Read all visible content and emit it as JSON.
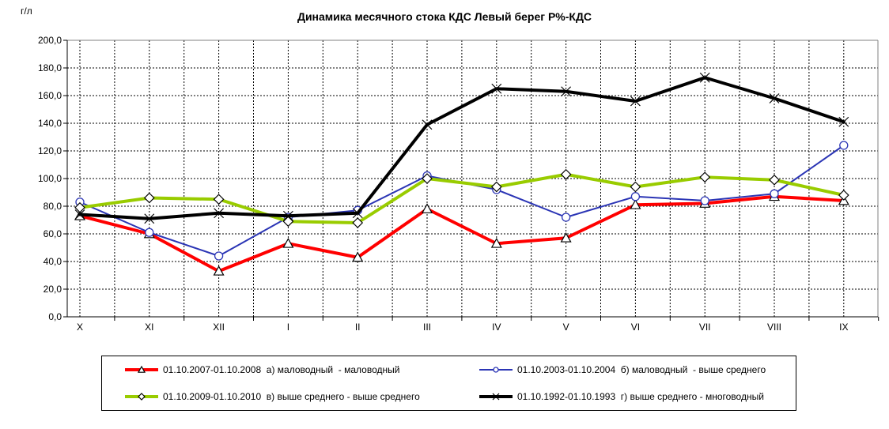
{
  "title": "Динамика месячного стока КДС Левый берег Р%-КДС",
  "y_axis": {
    "unit_label": "г/л",
    "min": 0,
    "max": 200,
    "step": 20,
    "tick_labels": [
      "0,0",
      "20,0",
      "40,0",
      "60,0",
      "80,0",
      "100,0",
      "120,0",
      "140,0",
      "160,0",
      "180,0",
      "200,0"
    ]
  },
  "x_axis": {
    "tick_labels": [
      "X",
      "XI",
      "XII",
      "I",
      "II",
      "III",
      "IV",
      "V",
      "VI",
      "VII",
      "VIII",
      "IX"
    ]
  },
  "chart_data": {
    "type": "line",
    "title": "Динамика месячного стока КДС Левый берег Р%-КДС",
    "xlabel": "",
    "ylabel": "г/л",
    "ylim": [
      0,
      200
    ],
    "ytick_step": 20,
    "grid": "dashed-both-directions",
    "legend_position": "bottom",
    "categories": [
      "X",
      "XI",
      "XII",
      "I",
      "II",
      "III",
      "IV",
      "V",
      "VI",
      "VII",
      "VIII",
      "IX"
    ],
    "series": [
      {
        "name": "01.10.2007-01.10.2008  а) маловодный  - маловодный",
        "color": "#FF0000",
        "marker": "triangle",
        "line_width": 4,
        "values": [
          73,
          60,
          33,
          53,
          43,
          78,
          53,
          57,
          81,
          82,
          87,
          84
        ]
      },
      {
        "name": "01.10.2003-01.10.2004  б) маловодный  - выше среднего",
        "color": "#2B35B5",
        "marker": "circle",
        "line_width": 2,
        "values": [
          83,
          61,
          44,
          72,
          77,
          102,
          92,
          72,
          87,
          84,
          89,
          124
        ]
      },
      {
        "name": "01.10.2009-01.10.2010  в) выше среднего - выше среднего",
        "color": "#99CC00",
        "marker": "diamond",
        "line_width": 4,
        "values": [
          79,
          86,
          85,
          69,
          68,
          100,
          94,
          103,
          94,
          101,
          99,
          88
        ]
      },
      {
        "name": "01.10.1992-01.10.1993  г) выше среднего - многоводный",
        "color": "#000000",
        "marker": "x",
        "line_width": 4,
        "values": [
          74,
          71,
          75,
          73,
          75,
          139,
          165,
          163,
          156,
          173,
          158,
          141
        ]
      }
    ]
  }
}
